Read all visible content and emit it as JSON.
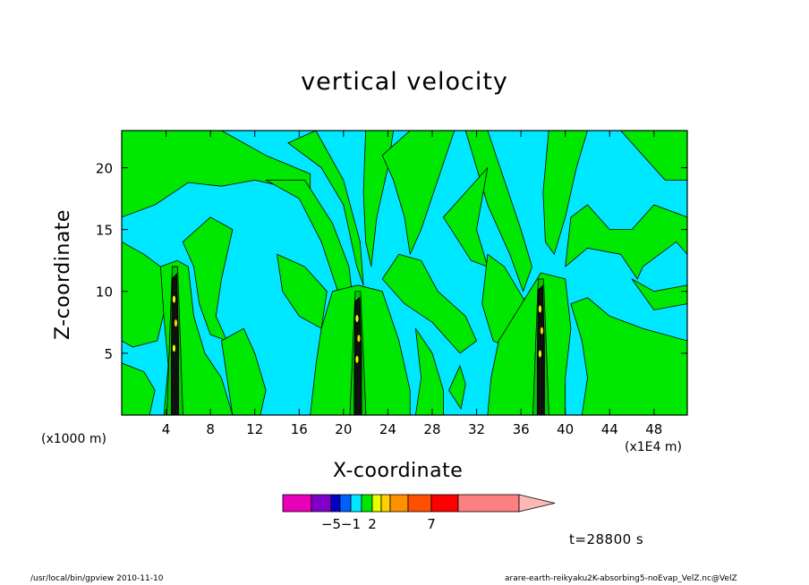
{
  "title": "vertical velocity",
  "footer": {
    "left": "/usr/local/bin/gpview   2010-11-10",
    "right": "arare-earth-reikyaku2K-absorbing5-noEvap_VelZ.nc@VelZ"
  },
  "time_label": "t=28800 s",
  "chart_data": {
    "type": "heatmap",
    "title": "vertical velocity",
    "xlabel": "X-coordinate",
    "ylabel": "Z-coordinate",
    "x_unit_left": "(x1000 m)",
    "x_unit_right": "(x1E4 m)",
    "xlim": [
      0,
      51
    ],
    "ylim": [
      0,
      23
    ],
    "x_ticks": [
      4,
      8,
      12,
      16,
      20,
      24,
      28,
      32,
      36,
      40,
      44,
      48
    ],
    "y_ticks": [
      5,
      10,
      15,
      20
    ],
    "background_color": "#00e8ff",
    "positive_color": "#00e800",
    "updraft_centers_x": [
      4.8,
      21.3,
      37.8
    ],
    "updraft_top_z": [
      12,
      10,
      11
    ],
    "colorbar": {
      "levels": [
        -5,
        -1,
        2,
        7
      ],
      "colors": [
        "#e800b8",
        "#8000c8",
        "#0000c8",
        "#0060ff",
        "#00e8ff",
        "#00e800",
        "#e8ff00",
        "#ffd000",
        "#ff9000",
        "#ff5000",
        "#ff0000",
        "#ff8080",
        "#ffb8b8"
      ]
    }
  }
}
